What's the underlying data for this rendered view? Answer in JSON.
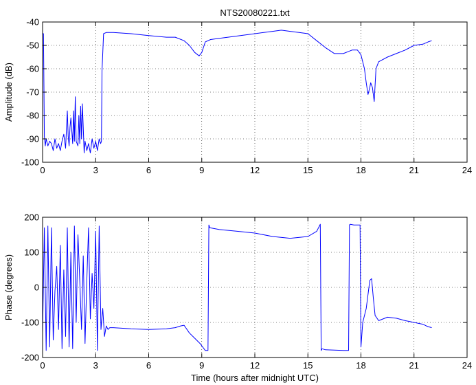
{
  "chart_data": [
    {
      "type": "line",
      "title": "NTS20080221.txt",
      "xlabel": "",
      "ylabel": "Amplitude (dB)",
      "xlim": [
        0,
        24
      ],
      "ylim": [
        -100,
        -40
      ],
      "xticks": [
        "0",
        "3",
        "6",
        "9",
        "12",
        "15",
        "18",
        "21",
        "24"
      ],
      "yticks": [
        "-40",
        "-50",
        "-60",
        "-70",
        "-80",
        "-90",
        "-100"
      ],
      "grid": true,
      "color": "#0000ff",
      "series": [
        {
          "x": [
            0.0,
            0.05,
            0.1,
            0.15,
            0.2,
            0.3,
            0.4,
            0.5,
            0.6,
            0.7,
            0.8,
            0.9,
            1.0,
            1.1,
            1.2,
            1.3,
            1.4,
            1.45,
            1.5,
            1.55,
            1.6,
            1.7,
            1.75,
            1.8,
            1.85,
            1.9,
            2.0,
            2.05,
            2.1,
            2.15,
            2.2,
            2.25,
            2.3,
            2.35,
            2.4,
            2.5,
            2.6,
            2.7,
            2.8,
            2.9,
            3.0,
            3.1,
            3.2,
            3.28,
            3.33,
            3.36,
            3.45,
            3.6,
            4.0,
            5.0,
            6.0,
            7.0,
            7.5,
            8.0,
            8.3,
            8.6,
            8.85,
            9.0,
            9.2,
            9.5,
            10.0,
            11.0,
            12.0,
            12.5,
            13.0,
            13.5,
            14.0,
            14.5,
            15.0,
            15.5,
            16.0,
            16.5,
            17.0,
            17.5,
            17.8,
            18.0,
            18.2,
            18.3,
            18.4,
            18.5,
            18.55,
            18.65,
            18.75,
            18.85,
            19.0,
            19.5,
            20.0,
            20.5,
            21.0,
            21.5,
            21.8,
            22.0
          ],
          "y": [
            -45,
            -45,
            -89,
            -93,
            -90,
            -93,
            -91,
            -92,
            -95,
            -90,
            -94,
            -92,
            -95,
            -91,
            -88,
            -94,
            -78,
            -89,
            -93,
            -85,
            -81,
            -92,
            -78,
            -91,
            -72,
            -91,
            -93,
            -80,
            -92,
            -76,
            -90,
            -75,
            -85,
            -96,
            -91,
            -95,
            -92,
            -96,
            -90,
            -94,
            -91,
            -95,
            -90,
            -92,
            -91,
            -61,
            -45,
            -44.5,
            -44.5,
            -45,
            -45.8,
            -46.5,
            -46.5,
            -48,
            -50,
            -53,
            -54.5,
            -53,
            -48.5,
            -47.5,
            -47,
            -46,
            -45,
            -44.5,
            -44,
            -43.5,
            -44,
            -44.5,
            -45,
            -48,
            -51,
            -53.5,
            -53.5,
            -52,
            -52,
            -54,
            -60,
            -66,
            -71,
            -68,
            -66,
            -68,
            -74,
            -60,
            -57,
            -55,
            -53.5,
            -52,
            -50,
            -49.5,
            -48.5,
            -48
          ]
        }
      ]
    },
    {
      "type": "line",
      "title": "",
      "xlabel": "Time (hours after midnight UTC)",
      "ylabel": "Phase (degrees)",
      "xlim": [
        0,
        24
      ],
      "ylim": [
        -200,
        200
      ],
      "xticks": [
        "0",
        "3",
        "6",
        "9",
        "12",
        "15",
        "18",
        "21",
        "24"
      ],
      "yticks": [
        "200",
        "100",
        "0",
        "-100",
        "-200"
      ],
      "grid": true,
      "color": "#0000ff",
      "series": [
        {
          "x": [
            0.0,
            0.1,
            0.2,
            0.3,
            0.4,
            0.5,
            0.6,
            0.7,
            0.8,
            0.9,
            1.0,
            1.1,
            1.2,
            1.3,
            1.4,
            1.5,
            1.6,
            1.7,
            1.8,
            1.9,
            2.0,
            2.1,
            2.2,
            2.3,
            2.4,
            2.5,
            2.6,
            2.7,
            2.8,
            2.9,
            3.0,
            3.1,
            3.2,
            3.3,
            3.4,
            3.5,
            3.6,
            3.7,
            3.8,
            4.0,
            5.0,
            6.0,
            7.0,
            7.5,
            7.8,
            8.0,
            8.3,
            8.6,
            8.9,
            9.2,
            9.35,
            9.4,
            9.45,
            10.0,
            11.0,
            12.0,
            13.0,
            14.0,
            15.0,
            15.5,
            15.7,
            15.75,
            15.8,
            16.0,
            17.0,
            17.3,
            17.35,
            17.4,
            17.6,
            17.95,
            18.0,
            18.1,
            18.3,
            18.5,
            18.6,
            18.7,
            18.8,
            19.0,
            19.5,
            20.0,
            20.5,
            21.0,
            21.5,
            21.7,
            21.8,
            22.0
          ],
          "y": [
            -130,
            170,
            -180,
            175,
            -170,
            170,
            -150,
            -10,
            60,
            -120,
            120,
            -175,
            50,
            -140,
            170,
            -170,
            100,
            -175,
            175,
            -100,
            150,
            20,
            -120,
            90,
            -160,
            20,
            170,
            -90,
            40,
            -60,
            160,
            -180,
            175,
            -120,
            -60,
            -140,
            -110,
            -120,
            -115,
            -115,
            -118,
            -120,
            -118,
            -115,
            -110,
            -108,
            -130,
            -145,
            -160,
            -180,
            -180,
            178,
            170,
            165,
            160,
            155,
            145,
            140,
            145,
            160,
            180,
            -180,
            -175,
            -178,
            -180,
            -180,
            178,
            180,
            178,
            178,
            -170,
            -100,
            -60,
            20,
            25,
            -30,
            -80,
            -95,
            -85,
            -88,
            -95,
            -100,
            -105,
            -110,
            -112,
            -115
          ]
        }
      ]
    }
  ]
}
